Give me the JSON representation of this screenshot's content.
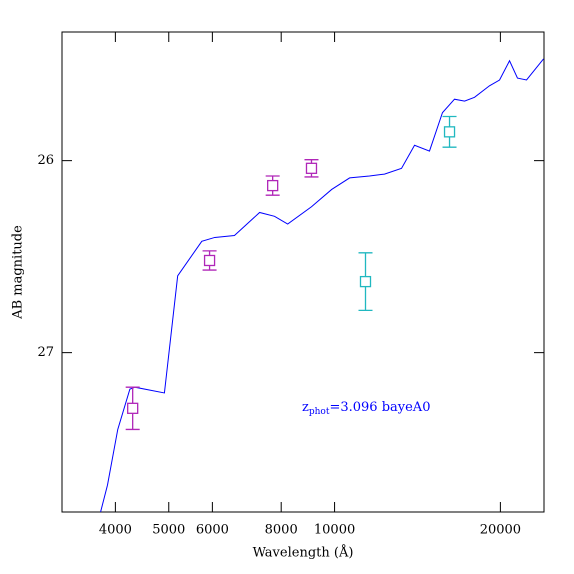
{
  "chart_data": {
    "type": "line",
    "xlabel": "Wavelength (Å)",
    "ylabel": "AB magnitude",
    "annotation": {
      "main": "z",
      "sub": "phot",
      "rest": "=3.096 bayeA0",
      "color": "#0000ff"
    },
    "xscale": "log",
    "xlim": [
      3200,
      24000
    ],
    "xticks": [
      4000,
      5000,
      6000,
      8000,
      10000,
      20000
    ],
    "ylim": [
      27.83,
      25.33
    ],
    "yticks": [
      26,
      27
    ],
    "grid": false,
    "series": [
      {
        "type": "line",
        "color": "#0000ff",
        "x": [
          3760,
          3870,
          4040,
          4250,
          4340,
          4910,
          5190,
          5740,
          6060,
          6580,
          7310,
          7780,
          8220,
          9080,
          9880,
          10650,
          11570,
          12320,
          13230,
          13970,
          14870,
          15700,
          16510,
          17220,
          17950,
          19110,
          19930,
          20780,
          21480,
          22310,
          23950
        ],
        "values": [
          27.83,
          27.69,
          27.4,
          27.19,
          27.18,
          27.21,
          26.6,
          26.42,
          26.4,
          26.39,
          26.27,
          26.29,
          26.33,
          26.24,
          26.15,
          26.09,
          26.08,
          26.07,
          26.04,
          25.92,
          25.95,
          25.75,
          25.68,
          25.69,
          25.67,
          25.61,
          25.58,
          25.48,
          25.57,
          25.58,
          25.47
        ]
      },
      {
        "type": "errorbar",
        "color": "#b026b8",
        "x": [
          4300,
          5930,
          7720,
          9080
        ],
        "values": [
          27.29,
          26.52,
          26.13,
          26.04
        ],
        "errors": [
          0.11,
          0.05,
          0.05,
          0.045
        ]
      },
      {
        "type": "errorbar",
        "color": "#20b8c0",
        "x": [
          11380,
          16170
        ],
        "values": [
          26.63,
          25.85
        ],
        "errors": [
          0.15,
          0.08
        ]
      }
    ]
  }
}
